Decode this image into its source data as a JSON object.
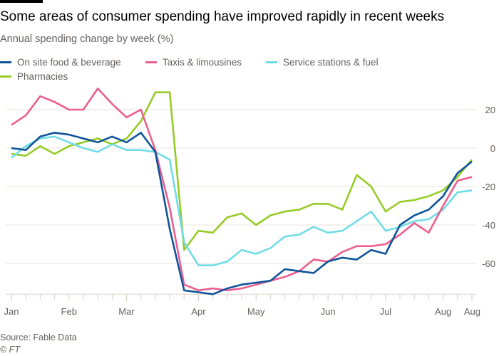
{
  "title": "Some areas of consumer spending have improved rapidly in recent weeks",
  "subtitle": "Annual spending change by week (%)",
  "source": "Source: Fable Data",
  "copyright": "© FT",
  "chart_data": {
    "type": "line",
    "title": "Some areas of consumer spending have improved rapidly in recent weeks",
    "ylabel": "Annual spending change by week (%)",
    "ylim": [
      -76,
      30
    ],
    "yticks": [
      20,
      0,
      -20,
      -40,
      -60
    ],
    "grid": true,
    "legend_position": "top-left",
    "x_tick_labels": [
      "Jan",
      "",
      "",
      "",
      "Feb",
      "",
      "",
      "",
      "Mar",
      "",
      "",
      "",
      "",
      "Apr",
      "",
      "",
      "",
      "May",
      "",
      "",
      "",
      "",
      "Jun",
      "",
      "",
      "",
      "Jul",
      "",
      "",
      "",
      "Aug",
      "",
      "Aug"
    ],
    "series": [
      {
        "name": "On site food & beverage",
        "color": "#0f5499",
        "values": [
          0,
          -1,
          6,
          8,
          7,
          5,
          3,
          6,
          3,
          8,
          -2,
          -42,
          -74,
          -75,
          -76,
          -73,
          -71,
          -70,
          -69,
          -63,
          -64,
          -65,
          -59,
          -57,
          -58,
          -53,
          -55,
          -40,
          -35,
          -32,
          -25,
          -13,
          -7
        ]
      },
      {
        "name": "Taxis & limousines",
        "color": "#eb5e8d",
        "values": [
          12,
          17,
          27,
          24,
          20,
          20,
          31,
          23,
          16,
          20,
          -1,
          -31,
          -71,
          -74,
          -73,
          -74,
          -73,
          -71,
          -69,
          -67,
          -64,
          -58,
          -59,
          -54,
          -51,
          -51,
          -50,
          -45,
          -39,
          -44,
          -30,
          -17,
          -15
        ]
      },
      {
        "name": "Service stations & fuel",
        "color": "#70dce6",
        "values": [
          -5,
          1,
          5,
          6,
          3,
          0,
          -2,
          2,
          -1,
          -1,
          -2,
          -6,
          -49,
          -61,
          -61,
          -59,
          -53,
          -55,
          -52,
          -46,
          -45,
          -41,
          -44,
          -43,
          -38,
          -33,
          -43,
          -41,
          -38,
          -37,
          -32,
          -23,
          -22
        ]
      },
      {
        "name": "Pharmacies",
        "color": "#96cc28",
        "values": [
          -3,
          -4,
          1,
          -3,
          1,
          3,
          5,
          2,
          5,
          14,
          29,
          29,
          -53,
          -43,
          -44,
          -36,
          -34,
          -40,
          -35,
          -33,
          -32,
          -29,
          -29,
          -32,
          -14,
          -20,
          -33,
          -28,
          -27,
          -25,
          -22,
          -15,
          -6
        ]
      }
    ]
  }
}
